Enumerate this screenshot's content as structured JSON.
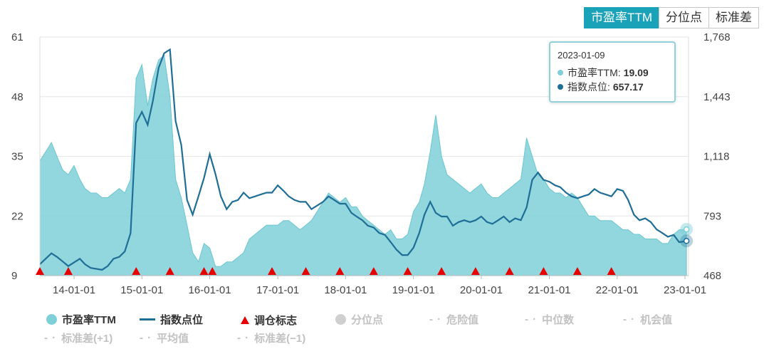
{
  "tabs": [
    {
      "label": "市盈率TTM",
      "active": true
    },
    {
      "label": "分位点",
      "active": false
    },
    {
      "label": "标准差",
      "active": false
    }
  ],
  "tooltip": {
    "date": "2023-01-09",
    "pe_label": "市盈率TTM:",
    "pe_value": "19.09",
    "index_label": "指数点位:",
    "index_value": "657.17"
  },
  "legend": [
    {
      "label": "市盈率TTM",
      "symbol": "circle",
      "color": "#7fcfd8",
      "active": true
    },
    {
      "label": "指数点位",
      "symbol": "line",
      "color": "#1f6e96",
      "active": true
    },
    {
      "label": "调仓标志",
      "symbol": "triangle",
      "color": "#e60000",
      "active": true
    },
    {
      "label": "分位点",
      "symbol": "circle",
      "color": "#c8c8c8",
      "active": false
    },
    {
      "label": "危险值",
      "symbol": "dash",
      "color": "#c8c8c8",
      "active": false
    },
    {
      "label": "中位数",
      "symbol": "dash",
      "color": "#c8c8c8",
      "active": false
    },
    {
      "label": "机会值",
      "symbol": "dash",
      "color": "#c8c8c8",
      "active": false
    },
    {
      "label": "标准差(+1)",
      "symbol": "dash",
      "color": "#c8c8c8",
      "active": false
    },
    {
      "label": "平均值",
      "symbol": "dash",
      "color": "#c8c8c8",
      "active": false
    },
    {
      "label": "标准差(−1)",
      "symbol": "dash",
      "color": "#c8c8c8",
      "active": false
    }
  ],
  "chart_data": {
    "type": "area",
    "x_start": "2013-07-01",
    "x_end": "2023-01-20",
    "x_ticks": [
      "14-01-01",
      "15-01-01",
      "16-01-01",
      "17-01-01",
      "18-01-01",
      "19-01-01",
      "20-01-01",
      "21-01-01",
      "22-01-01",
      "23-01-01"
    ],
    "y_left": {
      "min": 9,
      "max": 61,
      "ticks": [
        9,
        22,
        35,
        48,
        61
      ],
      "tick_labels": [
        "9",
        "22",
        "35",
        "48",
        "61"
      ]
    },
    "y_right": {
      "min": 468,
      "max": 1768,
      "ticks": [
        468,
        793,
        1118,
        1443,
        1768
      ],
      "tick_labels": [
        "468",
        "793",
        "1,118",
        "1,443",
        "1,768"
      ]
    },
    "grid": true,
    "series": [
      {
        "name": "市盈率TTM",
        "type": "area",
        "axis": "left",
        "color": "#7fcfd8",
        "points": [
          [
            "2013-07-01",
            34
          ],
          [
            "2013-08-01",
            36
          ],
          [
            "2013-09-01",
            38
          ],
          [
            "2013-10-01",
            35
          ],
          [
            "2013-11-01",
            32
          ],
          [
            "2013-12-01",
            31
          ],
          [
            "2014-01-01",
            33
          ],
          [
            "2014-02-01",
            30
          ],
          [
            "2014-03-01",
            28
          ],
          [
            "2014-04-01",
            27
          ],
          [
            "2014-05-01",
            27
          ],
          [
            "2014-06-01",
            26
          ],
          [
            "2014-07-01",
            26
          ],
          [
            "2014-08-01",
            27
          ],
          [
            "2014-09-01",
            28
          ],
          [
            "2014-10-01",
            27
          ],
          [
            "2014-11-01",
            30
          ],
          [
            "2014-12-01",
            52
          ],
          [
            "2015-01-01",
            55
          ],
          [
            "2015-02-01",
            46
          ],
          [
            "2015-03-01",
            52
          ],
          [
            "2015-04-01",
            56
          ],
          [
            "2015-05-01",
            57
          ],
          [
            "2015-06-01",
            48
          ],
          [
            "2015-07-01",
            30
          ],
          [
            "2015-08-01",
            26
          ],
          [
            "2015-09-01",
            20
          ],
          [
            "2015-10-01",
            14
          ],
          [
            "2015-11-01",
            12
          ],
          [
            "2015-12-01",
            16
          ],
          [
            "2016-01-01",
            15
          ],
          [
            "2016-02-01",
            11
          ],
          [
            "2016-03-01",
            11
          ],
          [
            "2016-04-01",
            12
          ],
          [
            "2016-05-01",
            12
          ],
          [
            "2016-06-01",
            13
          ],
          [
            "2016-07-01",
            14
          ],
          [
            "2016-08-01",
            17
          ],
          [
            "2016-09-01",
            18
          ],
          [
            "2016-10-01",
            19
          ],
          [
            "2016-11-01",
            20
          ],
          [
            "2016-12-01",
            20
          ],
          [
            "2017-01-01",
            20
          ],
          [
            "2017-02-01",
            21
          ],
          [
            "2017-03-01",
            21
          ],
          [
            "2017-04-01",
            20
          ],
          [
            "2017-05-01",
            19
          ],
          [
            "2017-06-01",
            20
          ],
          [
            "2017-07-01",
            21
          ],
          [
            "2017-08-01",
            23
          ],
          [
            "2017-09-01",
            25
          ],
          [
            "2017-10-01",
            27
          ],
          [
            "2017-11-01",
            26
          ],
          [
            "2017-12-01",
            25
          ],
          [
            "2018-01-01",
            26
          ],
          [
            "2018-02-01",
            24
          ],
          [
            "2018-03-01",
            24
          ],
          [
            "2018-04-01",
            22
          ],
          [
            "2018-05-01",
            21
          ],
          [
            "2018-06-01",
            20
          ],
          [
            "2018-07-01",
            19
          ],
          [
            "2018-08-01",
            18
          ],
          [
            "2018-09-01",
            19
          ],
          [
            "2018-10-01",
            17
          ],
          [
            "2018-11-01",
            17
          ],
          [
            "2018-12-01",
            18
          ],
          [
            "2019-01-01",
            23
          ],
          [
            "2019-02-01",
            25
          ],
          [
            "2019-03-01",
            29
          ],
          [
            "2019-04-01",
            36
          ],
          [
            "2019-05-01",
            44
          ],
          [
            "2019-06-01",
            35
          ],
          [
            "2019-07-01",
            31
          ],
          [
            "2019-08-01",
            30
          ],
          [
            "2019-09-01",
            29
          ],
          [
            "2019-10-01",
            28
          ],
          [
            "2019-11-01",
            27
          ],
          [
            "2019-12-01",
            28
          ],
          [
            "2020-01-01",
            29
          ],
          [
            "2020-02-01",
            27
          ],
          [
            "2020-03-01",
            26
          ],
          [
            "2020-04-01",
            26
          ],
          [
            "2020-05-01",
            27
          ],
          [
            "2020-06-01",
            28
          ],
          [
            "2020-07-01",
            29
          ],
          [
            "2020-08-01",
            30
          ],
          [
            "2020-09-01",
            39
          ],
          [
            "2020-10-01",
            35
          ],
          [
            "2020-11-01",
            31
          ],
          [
            "2020-12-01",
            30
          ],
          [
            "2021-01-01",
            28
          ],
          [
            "2021-02-01",
            27
          ],
          [
            "2021-03-01",
            27
          ],
          [
            "2021-04-01",
            26
          ],
          [
            "2021-05-01",
            27
          ],
          [
            "2021-06-01",
            26
          ],
          [
            "2021-07-01",
            24
          ],
          [
            "2021-08-01",
            22
          ],
          [
            "2021-09-01",
            22
          ],
          [
            "2021-10-01",
            21
          ],
          [
            "2021-11-01",
            21
          ],
          [
            "2021-12-01",
            21
          ],
          [
            "2022-01-01",
            20
          ],
          [
            "2022-02-01",
            19
          ],
          [
            "2022-03-01",
            19
          ],
          [
            "2022-04-01",
            18
          ],
          [
            "2022-05-01",
            18
          ],
          [
            "2022-06-01",
            17
          ],
          [
            "2022-07-01",
            17
          ],
          [
            "2022-08-01",
            17
          ],
          [
            "2022-09-01",
            16
          ],
          [
            "2022-10-01",
            16
          ],
          [
            "2022-11-01",
            18
          ],
          [
            "2022-12-01",
            19
          ],
          [
            "2023-01-09",
            19.09
          ]
        ]
      },
      {
        "name": "指数点位",
        "type": "line",
        "axis": "right",
        "color": "#1f6e96",
        "points": [
          [
            "2013-07-01",
            530
          ],
          [
            "2013-08-01",
            560
          ],
          [
            "2013-09-01",
            590
          ],
          [
            "2013-10-01",
            570
          ],
          [
            "2013-11-01",
            545
          ],
          [
            "2013-12-01",
            520
          ],
          [
            "2014-01-01",
            540
          ],
          [
            "2014-02-01",
            560
          ],
          [
            "2014-03-01",
            530
          ],
          [
            "2014-04-01",
            510
          ],
          [
            "2014-05-01",
            505
          ],
          [
            "2014-06-01",
            500
          ],
          [
            "2014-07-01",
            520
          ],
          [
            "2014-08-01",
            560
          ],
          [
            "2014-09-01",
            570
          ],
          [
            "2014-10-01",
            600
          ],
          [
            "2014-11-01",
            700
          ],
          [
            "2014-12-01",
            1300
          ],
          [
            "2015-01-01",
            1360
          ],
          [
            "2015-02-01",
            1290
          ],
          [
            "2015-03-01",
            1420
          ],
          [
            "2015-04-01",
            1600
          ],
          [
            "2015-05-01",
            1680
          ],
          [
            "2015-06-01",
            1700
          ],
          [
            "2015-07-01",
            1310
          ],
          [
            "2015-08-01",
            1180
          ],
          [
            "2015-09-01",
            880
          ],
          [
            "2015-10-01",
            800
          ],
          [
            "2015-11-01",
            900
          ],
          [
            "2015-12-01",
            1000
          ],
          [
            "2016-01-01",
            1130
          ],
          [
            "2016-02-01",
            1020
          ],
          [
            "2016-03-01",
            900
          ],
          [
            "2016-04-01",
            830
          ],
          [
            "2016-05-01",
            870
          ],
          [
            "2016-06-01",
            880
          ],
          [
            "2016-07-01",
            920
          ],
          [
            "2016-08-01",
            890
          ],
          [
            "2016-09-01",
            900
          ],
          [
            "2016-10-01",
            910
          ],
          [
            "2016-11-01",
            920
          ],
          [
            "2016-12-01",
            920
          ],
          [
            "2017-01-01",
            960
          ],
          [
            "2017-02-01",
            930
          ],
          [
            "2017-03-01",
            900
          ],
          [
            "2017-04-01",
            880
          ],
          [
            "2017-05-01",
            870
          ],
          [
            "2017-06-01",
            870
          ],
          [
            "2017-07-01",
            830
          ],
          [
            "2017-08-01",
            850
          ],
          [
            "2017-09-01",
            870
          ],
          [
            "2017-10-01",
            900
          ],
          [
            "2017-11-01",
            880
          ],
          [
            "2017-12-01",
            860
          ],
          [
            "2018-01-01",
            860
          ],
          [
            "2018-02-01",
            810
          ],
          [
            "2018-03-01",
            790
          ],
          [
            "2018-04-01",
            770
          ],
          [
            "2018-05-01",
            740
          ],
          [
            "2018-06-01",
            730
          ],
          [
            "2018-07-01",
            700
          ],
          [
            "2018-08-01",
            690
          ],
          [
            "2018-09-01",
            650
          ],
          [
            "2018-10-01",
            610
          ],
          [
            "2018-11-01",
            580
          ],
          [
            "2018-12-01",
            580
          ],
          [
            "2019-01-01",
            620
          ],
          [
            "2019-02-01",
            700
          ],
          [
            "2019-03-01",
            800
          ],
          [
            "2019-04-01",
            870
          ],
          [
            "2019-05-01",
            810
          ],
          [
            "2019-06-01",
            790
          ],
          [
            "2019-07-01",
            790
          ],
          [
            "2019-08-01",
            740
          ],
          [
            "2019-09-01",
            760
          ],
          [
            "2019-10-01",
            770
          ],
          [
            "2019-11-01",
            760
          ],
          [
            "2019-12-01",
            770
          ],
          [
            "2020-01-01",
            790
          ],
          [
            "2020-02-01",
            760
          ],
          [
            "2020-03-01",
            750
          ],
          [
            "2020-04-01",
            770
          ],
          [
            "2020-05-01",
            790
          ],
          [
            "2020-06-01",
            760
          ],
          [
            "2020-07-01",
            780
          ],
          [
            "2020-08-01",
            770
          ],
          [
            "2020-09-01",
            840
          ],
          [
            "2020-10-01",
            990
          ],
          [
            "2020-11-01",
            1030
          ],
          [
            "2020-12-01",
            990
          ],
          [
            "2021-01-01",
            980
          ],
          [
            "2021-02-01",
            960
          ],
          [
            "2021-03-01",
            950
          ],
          [
            "2021-04-01",
            920
          ],
          [
            "2021-05-01",
            900
          ],
          [
            "2021-06-01",
            890
          ],
          [
            "2021-07-01",
            900
          ],
          [
            "2021-08-01",
            910
          ],
          [
            "2021-09-01",
            940
          ],
          [
            "2021-10-01",
            920
          ],
          [
            "2021-11-01",
            910
          ],
          [
            "2021-12-01",
            900
          ],
          [
            "2022-01-01",
            940
          ],
          [
            "2022-02-01",
            930
          ],
          [
            "2022-03-01",
            880
          ],
          [
            "2022-04-01",
            800
          ],
          [
            "2022-05-01",
            770
          ],
          [
            "2022-06-01",
            780
          ],
          [
            "2022-07-01",
            760
          ],
          [
            "2022-08-01",
            720
          ],
          [
            "2022-09-01",
            700
          ],
          [
            "2022-10-01",
            680
          ],
          [
            "2022-11-01",
            690
          ],
          [
            "2022-12-01",
            650
          ],
          [
            "2023-01-09",
            657.17
          ]
        ]
      },
      {
        "name": "调仓标志",
        "type": "marker",
        "color": "#e60000",
        "dates": [
          "2013-07-01",
          "2013-12-01",
          "2014-12-01",
          "2015-06-01",
          "2015-12-01",
          "2016-01-15",
          "2016-12-01",
          "2017-06-01",
          "2017-12-01",
          "2018-06-01",
          "2018-12-01",
          "2019-06-01",
          "2019-12-01",
          "2020-06-01",
          "2020-12-01",
          "2021-06-01",
          "2021-12-01"
        ]
      }
    ],
    "highlight_date": "2023-01-09"
  }
}
